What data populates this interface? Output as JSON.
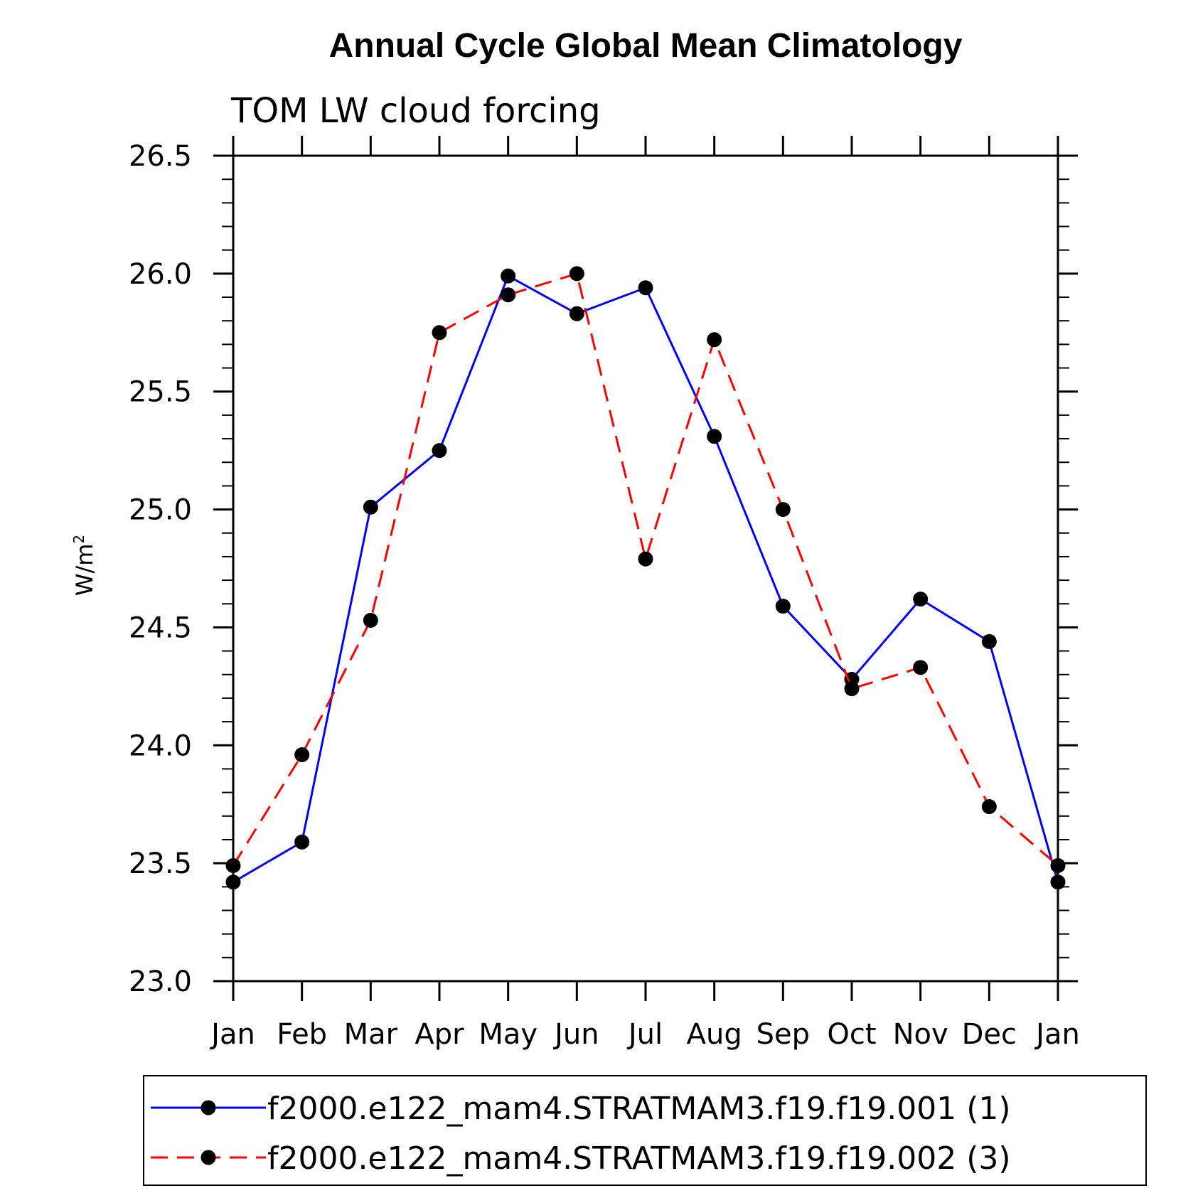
{
  "chart_data": {
    "type": "line",
    "title": "Annual Cycle Global Mean Climatology",
    "subtitle": "TOM LW cloud forcing",
    "ylabel": "W/m",
    "ylabel_sup": "2",
    "xlabel": "",
    "categories": [
      "Jan",
      "Feb",
      "Mar",
      "Apr",
      "May",
      "Jun",
      "Jul",
      "Aug",
      "Sep",
      "Oct",
      "Nov",
      "Dec",
      "Jan"
    ],
    "ylim": [
      23.0,
      26.5
    ],
    "yticks": [
      23.0,
      23.5,
      24.0,
      24.5,
      25.0,
      25.5,
      26.0,
      26.5
    ],
    "ytick_labels": [
      "23.0",
      "23.5",
      "24.0",
      "24.5",
      "25.0",
      "25.5",
      "26.0",
      "26.5"
    ],
    "series": [
      {
        "name": "f2000.e122_mam4.STRATMAM3.f19.f19.001 (1)",
        "color": "#0000ff",
        "dash": "solid",
        "values": [
          23.42,
          23.59,
          25.01,
          25.25,
          25.99,
          25.83,
          25.94,
          25.31,
          24.59,
          24.28,
          24.62,
          24.44,
          23.42
        ]
      },
      {
        "name": "f2000.e122_mam4.STRATMAM3.f19.f19.002 (3)",
        "color": "#ff0000",
        "dash": "dashed",
        "values": [
          23.49,
          23.96,
          24.53,
          25.75,
          25.91,
          26.0,
          24.79,
          25.72,
          25.0,
          24.24,
          24.33,
          23.74,
          23.49
        ]
      }
    ],
    "marker": "filled-circle",
    "marker_color": "#000000",
    "legend_position": "bottom"
  }
}
